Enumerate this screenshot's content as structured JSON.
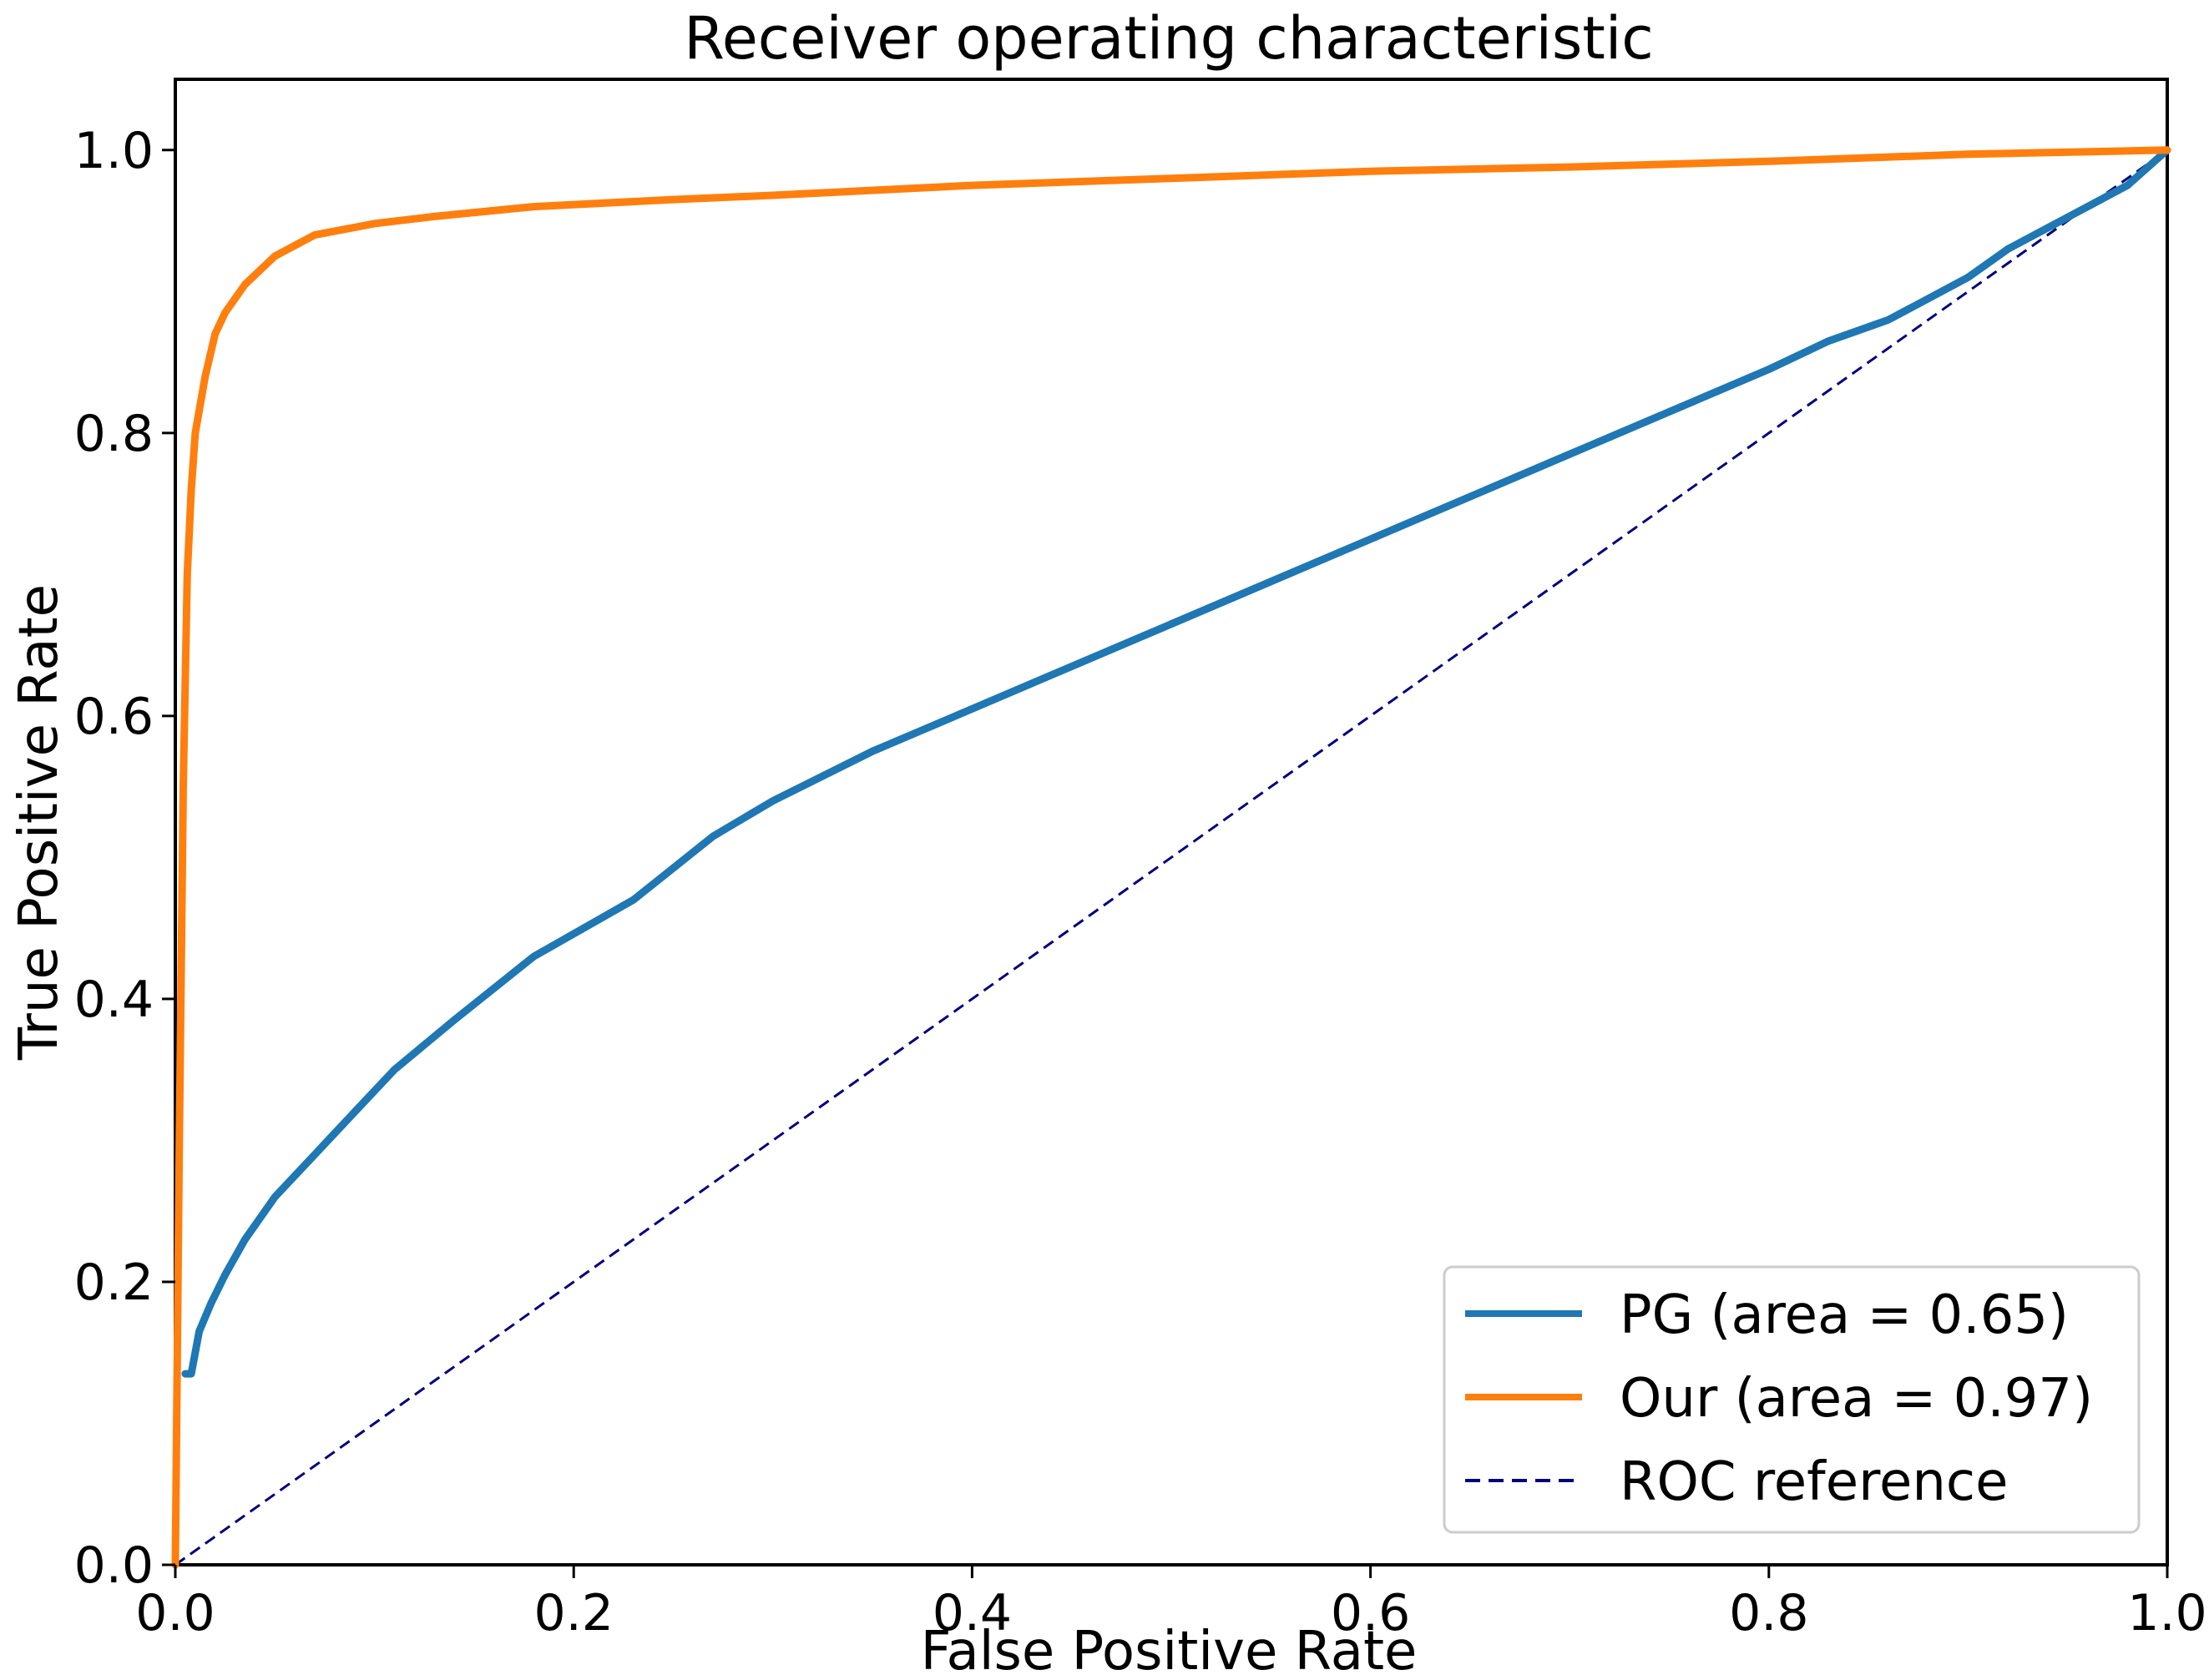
{
  "chart_data": {
    "type": "line",
    "title": "Receiver operating characteristic",
    "xlabel": "False Positive Rate",
    "ylabel": "True Positive Rate",
    "xlim": [
      0.0,
      1.0
    ],
    "ylim": [
      0.0,
      1.05
    ],
    "xticks": [
      0.0,
      0.2,
      0.4,
      0.6,
      0.8,
      1.0
    ],
    "yticks": [
      0.0,
      0.2,
      0.4,
      0.6,
      0.8,
      1.0
    ],
    "xtick_labels": [
      "0.0",
      "0.2",
      "0.4",
      "0.6",
      "0.8",
      "1.0"
    ],
    "ytick_labels": [
      "0.0",
      "0.2",
      "0.4",
      "0.6",
      "0.8",
      "1.0"
    ],
    "grid": false,
    "legend_position": "lower-right",
    "series": [
      {
        "name": "PG (area = 0.65)",
        "color": "#1f77b4",
        "style": "solid",
        "x": [
          0.005,
          0.008,
          0.012,
          0.018,
          0.025,
          0.035,
          0.05,
          0.07,
          0.09,
          0.11,
          0.14,
          0.18,
          0.23,
          0.27,
          0.3,
          0.35,
          0.4,
          0.45,
          0.5,
          0.55,
          0.6,
          0.65,
          0.7,
          0.75,
          0.8,
          0.83,
          0.86,
          0.88,
          0.9,
          0.92,
          0.94,
          0.96,
          0.98,
          1.0
        ],
        "y": [
          0.135,
          0.135,
          0.165,
          0.185,
          0.205,
          0.23,
          0.26,
          0.29,
          0.32,
          0.35,
          0.385,
          0.43,
          0.47,
          0.515,
          0.54,
          0.575,
          0.605,
          0.635,
          0.665,
          0.695,
          0.725,
          0.755,
          0.785,
          0.815,
          0.845,
          0.865,
          0.88,
          0.895,
          0.91,
          0.93,
          0.945,
          0.96,
          0.975,
          1.0
        ]
      },
      {
        "name": "Our (area = 0.97)",
        "color": "#ff7f0e",
        "style": "solid",
        "x": [
          0.0,
          0.002,
          0.004,
          0.006,
          0.008,
          0.01,
          0.015,
          0.02,
          0.025,
          0.035,
          0.05,
          0.07,
          0.1,
          0.13,
          0.18,
          0.25,
          0.3,
          0.4,
          0.5,
          0.6,
          0.7,
          0.8,
          0.9,
          1.0
        ],
        "y": [
          0.0,
          0.3,
          0.55,
          0.7,
          0.76,
          0.8,
          0.84,
          0.87,
          0.885,
          0.905,
          0.925,
          0.94,
          0.948,
          0.953,
          0.96,
          0.965,
          0.968,
          0.975,
          0.98,
          0.985,
          0.988,
          0.992,
          0.997,
          1.0
        ]
      },
      {
        "name": "ROC reference",
        "color": "#000080",
        "style": "dashed",
        "x": [
          0.0,
          1.0
        ],
        "y": [
          0.0,
          1.0
        ]
      }
    ]
  }
}
